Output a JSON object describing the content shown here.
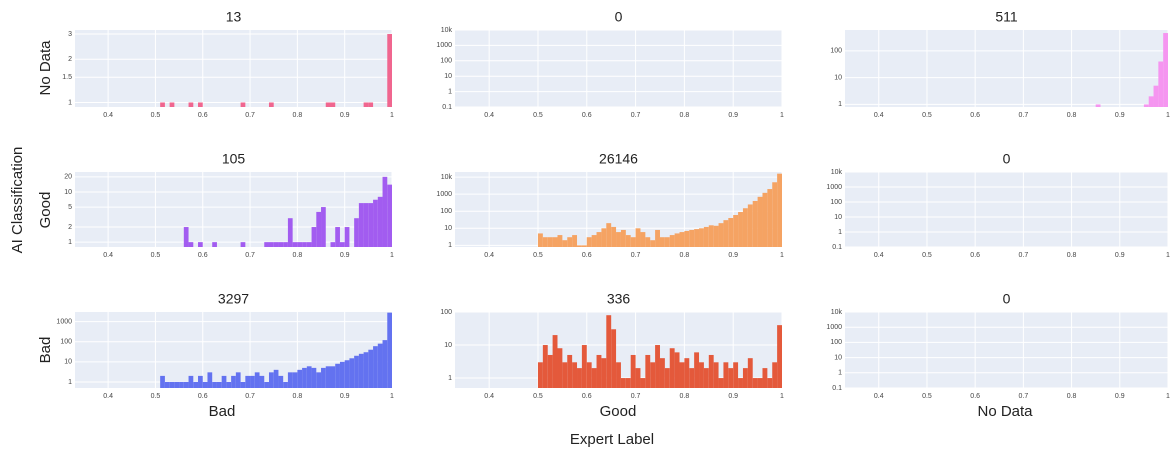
{
  "y_axis_title": "AI Classification",
  "x_axis_title": "Expert Label",
  "row_labels": [
    "No Data",
    "Good",
    "Bad"
  ],
  "column_labels": [
    "Bad",
    "Good",
    "No Data"
  ],
  "chart_data": [
    {
      "type": "histogram",
      "title": "13",
      "log_y": true,
      "color": "#f0668f",
      "grid": true,
      "bins": [
        0.5,
        0.51,
        0.52,
        0.53,
        0.54,
        0.55,
        0.56,
        0.57,
        0.58,
        0.59,
        0.6,
        0.61,
        0.62,
        0.63,
        0.64,
        0.65,
        0.66,
        0.67,
        0.68,
        0.69,
        0.7,
        0.71,
        0.72,
        0.73,
        0.74,
        0.75,
        0.76,
        0.77,
        0.78,
        0.79,
        0.8,
        0.81,
        0.82,
        0.83,
        0.84,
        0.85,
        0.86,
        0.87,
        0.88,
        0.89,
        0.9,
        0.91,
        0.92,
        0.93,
        0.94,
        0.95,
        0.96,
        0.97,
        0.98,
        0.99,
        1
      ],
      "values": [
        0,
        1,
        0,
        1,
        0,
        0,
        0,
        1,
        0,
        1,
        0,
        0,
        0,
        0,
        0,
        0,
        0,
        0,
        1,
        0,
        0,
        0,
        0,
        0,
        1,
        0,
        0,
        0,
        0,
        0,
        0,
        0,
        0,
        0,
        0,
        0,
        1,
        1,
        0,
        0,
        0,
        0,
        0,
        0,
        1,
        1,
        0,
        0,
        0,
        3
      ],
      "xlim": [
        0.33,
        1
      ],
      "xticks": [
        0.4,
        0.5,
        0.6,
        0.7,
        0.8,
        0.9,
        1
      ],
      "ylim": [
        0.93,
        3.2
      ],
      "yticks": [
        1,
        1.5,
        2,
        3
      ]
    },
    {
      "type": "histogram",
      "title": "0",
      "log_y": true,
      "color": "#f5a363",
      "grid": true,
      "xlim": [
        0.33,
        1
      ],
      "xticks": [
        0.4,
        0.5,
        0.6,
        0.7,
        0.8,
        0.9,
        1
      ],
      "ylim": [
        0.1,
        10000
      ],
      "yticks": [
        0.1,
        1,
        10,
        100,
        1000,
        {
          "value": 10000,
          "label": "10k"
        }
      ]
    },
    {
      "type": "histogram",
      "title": "511",
      "log_y": true,
      "color": "#f595f0",
      "grid": true,
      "bins": [
        0.5,
        0.51,
        0.52,
        0.53,
        0.54,
        0.55,
        0.56,
        0.57,
        0.58,
        0.59,
        0.6,
        0.61,
        0.62,
        0.63,
        0.64,
        0.65,
        0.66,
        0.67,
        0.68,
        0.69,
        0.7,
        0.71,
        0.72,
        0.73,
        0.74,
        0.75,
        0.76,
        0.77,
        0.78,
        0.79,
        0.8,
        0.81,
        0.82,
        0.83,
        0.84,
        0.85,
        0.86,
        0.87,
        0.88,
        0.89,
        0.9,
        0.91,
        0.92,
        0.93,
        0.94,
        0.95,
        0.96,
        0.97,
        0.98,
        0.99,
        1
      ],
      "values": [
        0,
        0,
        0,
        0,
        0,
        0,
        0,
        0,
        0,
        0,
        0,
        0,
        0,
        0,
        0,
        0,
        0,
        0,
        0,
        0,
        0,
        0,
        0,
        0,
        0,
        0,
        0,
        0,
        0,
        0,
        0,
        0,
        0,
        0,
        0,
        1,
        0,
        0,
        0,
        0,
        0,
        0,
        0,
        0,
        0,
        1,
        2,
        5,
        40,
        462
      ],
      "xlim": [
        0.33,
        1
      ],
      "xticks": [
        0.4,
        0.5,
        0.6,
        0.7,
        0.8,
        0.9,
        1
      ],
      "ylim": [
        0.8,
        600
      ],
      "yticks": [
        1,
        10,
        100
      ]
    },
    {
      "type": "histogram",
      "title": "105",
      "log_y": true,
      "color": "#a25cf0",
      "grid": true,
      "bins": [
        0.5,
        0.51,
        0.52,
        0.53,
        0.54,
        0.55,
        0.56,
        0.57,
        0.58,
        0.59,
        0.6,
        0.61,
        0.62,
        0.63,
        0.64,
        0.65,
        0.66,
        0.67,
        0.68,
        0.69,
        0.7,
        0.71,
        0.72,
        0.73,
        0.74,
        0.75,
        0.76,
        0.77,
        0.78,
        0.79,
        0.8,
        0.81,
        0.82,
        0.83,
        0.84,
        0.85,
        0.86,
        0.87,
        0.88,
        0.89,
        0.9,
        0.91,
        0.92,
        0.93,
        0.94,
        0.95,
        0.96,
        0.97,
        0.98,
        0.99,
        1
      ],
      "values": [
        0,
        0,
        0,
        0,
        0,
        0,
        2,
        1,
        0,
        1,
        0,
        0,
        1,
        0,
        0,
        0,
        0,
        0,
        1,
        0,
        0,
        0,
        0,
        1,
        1,
        1,
        1,
        1,
        3,
        1,
        1,
        1,
        1,
        2,
        4,
        5,
        0,
        1,
        2,
        1,
        2,
        0,
        3,
        6,
        6,
        6,
        7,
        8,
        20,
        14
      ],
      "xlim": [
        0.33,
        1
      ],
      "xticks": [
        0.4,
        0.5,
        0.6,
        0.7,
        0.8,
        0.9,
        1
      ],
      "ylim": [
        0.8,
        25
      ],
      "yticks": [
        1,
        2,
        5,
        10,
        20
      ]
    },
    {
      "type": "histogram",
      "title": "26146",
      "log_y": true,
      "color": "#f5a363",
      "grid": true,
      "bins": [
        0.5,
        0.51,
        0.52,
        0.53,
        0.54,
        0.55,
        0.56,
        0.57,
        0.58,
        0.59,
        0.6,
        0.61,
        0.62,
        0.63,
        0.64,
        0.65,
        0.66,
        0.67,
        0.68,
        0.69,
        0.7,
        0.71,
        0.72,
        0.73,
        0.74,
        0.75,
        0.76,
        0.77,
        0.78,
        0.79,
        0.8,
        0.81,
        0.82,
        0.83,
        0.84,
        0.85,
        0.86,
        0.87,
        0.88,
        0.89,
        0.9,
        0.91,
        0.92,
        0.93,
        0.94,
        0.95,
        0.96,
        0.97,
        0.98,
        0.99,
        1
      ],
      "values": [
        5,
        3,
        3,
        3,
        4,
        2,
        3,
        4,
        1,
        1,
        3,
        4,
        6,
        10,
        20,
        12,
        6,
        8,
        4,
        3,
        10,
        6,
        3,
        2,
        8,
        3,
        3,
        4,
        5,
        6,
        7,
        8,
        9,
        10,
        12,
        15,
        14,
        20,
        30,
        40,
        60,
        90,
        150,
        250,
        400,
        700,
        1200,
        2000,
        5000,
        15976
      ],
      "xlim": [
        0.33,
        1
      ],
      "xticks": [
        0.4,
        0.5,
        0.6,
        0.7,
        0.8,
        0.9,
        1
      ],
      "ylim": [
        0.8,
        20000
      ],
      "yticks": [
        1,
        10,
        100,
        1000,
        {
          "value": 10000,
          "label": "10k"
        }
      ]
    },
    {
      "type": "histogram",
      "title": "0",
      "log_y": true,
      "color": "#f595f0",
      "grid": true,
      "xlim": [
        0.33,
        1
      ],
      "xticks": [
        0.4,
        0.5,
        0.6,
        0.7,
        0.8,
        0.9,
        1
      ],
      "ylim": [
        0.1,
        10000
      ],
      "yticks": [
        0.1,
        1,
        10,
        100,
        1000,
        {
          "value": 10000,
          "label": "10k"
        }
      ]
    },
    {
      "type": "histogram",
      "title": "3297",
      "log_y": true,
      "color": "#6372f0",
      "grid": true,
      "bins": [
        0.5,
        0.51,
        0.52,
        0.53,
        0.54,
        0.55,
        0.56,
        0.57,
        0.58,
        0.59,
        0.6,
        0.61,
        0.62,
        0.63,
        0.64,
        0.65,
        0.66,
        0.67,
        0.68,
        0.69,
        0.7,
        0.71,
        0.72,
        0.73,
        0.74,
        0.75,
        0.76,
        0.77,
        0.78,
        0.79,
        0.8,
        0.81,
        0.82,
        0.83,
        0.84,
        0.85,
        0.86,
        0.87,
        0.88,
        0.89,
        0.9,
        0.91,
        0.92,
        0.93,
        0.94,
        0.95,
        0.96,
        0.97,
        0.98,
        0.99,
        1
      ],
      "values": [
        0,
        2,
        1,
        1,
        1,
        1,
        1,
        2,
        1,
        2,
        1,
        3,
        1,
        1,
        2,
        1,
        2,
        3,
        1,
        2,
        2,
        3,
        2,
        1,
        3,
        4,
        2,
        1,
        3,
        3,
        4,
        5,
        6,
        5,
        3,
        5,
        6,
        6,
        8,
        10,
        12,
        15,
        20,
        25,
        30,
        40,
        60,
        80,
        120,
        2784
      ],
      "xlim": [
        0.33,
        1
      ],
      "xticks": [
        0.4,
        0.5,
        0.6,
        0.7,
        0.8,
        0.9,
        1
      ],
      "ylim": [
        0.5,
        3000
      ],
      "yticks": [
        1,
        10,
        100,
        1000
      ]
    },
    {
      "type": "histogram",
      "title": "336",
      "log_y": true,
      "color": "#e4593b",
      "grid": true,
      "bins": [
        0.5,
        0.51,
        0.52,
        0.53,
        0.54,
        0.55,
        0.56,
        0.57,
        0.58,
        0.59,
        0.6,
        0.61,
        0.62,
        0.63,
        0.64,
        0.65,
        0.66,
        0.67,
        0.68,
        0.69,
        0.7,
        0.71,
        0.72,
        0.73,
        0.74,
        0.75,
        0.76,
        0.77,
        0.78,
        0.79,
        0.8,
        0.81,
        0.82,
        0.83,
        0.84,
        0.85,
        0.86,
        0.87,
        0.88,
        0.89,
        0.9,
        0.91,
        0.92,
        0.93,
        0.94,
        0.95,
        0.96,
        0.97,
        0.98,
        0.99,
        1
      ],
      "values": [
        3,
        10,
        5,
        20,
        8,
        3,
        5,
        3,
        2,
        10,
        3,
        2,
        5,
        4,
        80,
        30,
        3,
        1,
        1,
        5,
        2,
        1,
        5,
        3,
        10,
        4,
        2,
        8,
        6,
        3,
        4,
        2,
        6,
        3,
        2,
        5,
        3,
        1,
        3,
        2,
        3,
        1,
        2,
        4,
        1,
        1,
        2,
        1,
        3,
        40
      ],
      "xlim": [
        0.33,
        1
      ],
      "xticks": [
        0.4,
        0.5,
        0.6,
        0.7,
        0.8,
        0.9,
        1
      ],
      "ylim": [
        0.5,
        100
      ],
      "yticks": [
        1,
        10,
        100
      ]
    },
    {
      "type": "histogram",
      "title": "0",
      "log_y": true,
      "color": "#f595f0",
      "grid": true,
      "xlim": [
        0.33,
        1
      ],
      "xticks": [
        0.4,
        0.5,
        0.6,
        0.7,
        0.8,
        0.9,
        1
      ],
      "ylim": [
        0.1,
        10000
      ],
      "yticks": [
        0.1,
        1,
        10,
        100,
        1000,
        {
          "value": 10000,
          "label": "10k"
        }
      ]
    }
  ]
}
